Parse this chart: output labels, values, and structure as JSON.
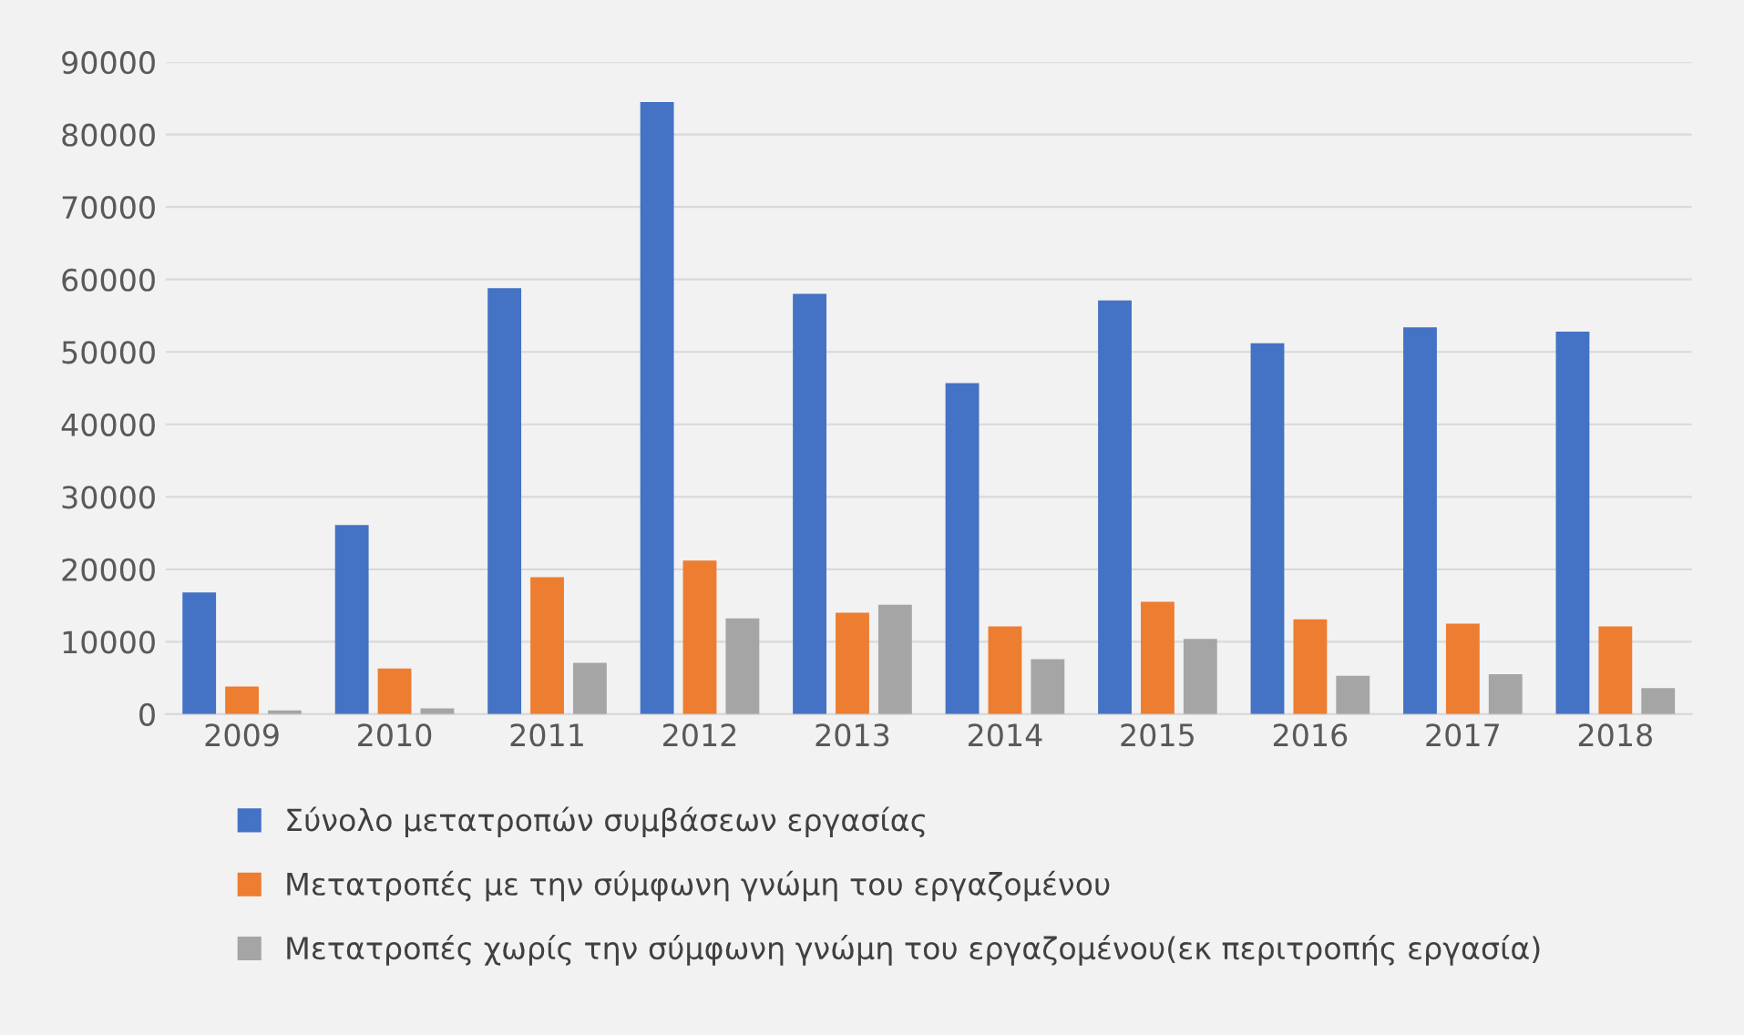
{
  "chart_data": {
    "type": "bar",
    "categories": [
      "2009",
      "2010",
      "2011",
      "2012",
      "2013",
      "2014",
      "2015",
      "2016",
      "2017",
      "2018"
    ],
    "series": [
      {
        "name": "Σύνολο μετατροπών συμβάσεων εργασίας",
        "color": "#4472c4",
        "values": [
          16800,
          26100,
          58800,
          84500,
          58000,
          45700,
          57100,
          51200,
          53400,
          52800
        ]
      },
      {
        "name": "Μετατροπές με την σύμφωνη γνώμη του εργαζομένου",
        "color": "#ed7d31",
        "values": [
          3800,
          6300,
          18900,
          21200,
          14000,
          12100,
          15500,
          13100,
          12500,
          12100
        ]
      },
      {
        "name": "Μετατροπές χωρίς την σύμφωνη γνώμη του εργαζομένου(εκ περιτροπής εργασία)",
        "color": "#a5a5a5",
        "values": [
          500,
          800,
          7100,
          13200,
          15100,
          7600,
          10400,
          5300,
          5500,
          3600
        ]
      }
    ],
    "ylim": [
      0,
      90000
    ],
    "yticks": [
      0,
      10000,
      20000,
      30000,
      40000,
      50000,
      60000,
      70000,
      80000,
      90000
    ],
    "grid": "y",
    "legend": "bottom"
  }
}
